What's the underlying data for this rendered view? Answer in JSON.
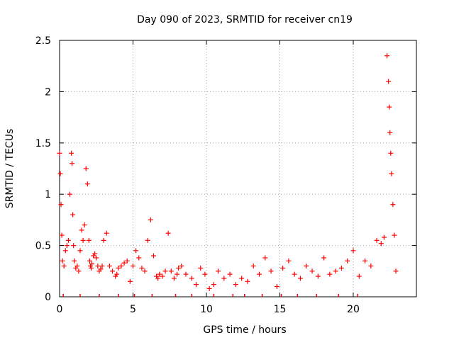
{
  "chart_data": {
    "type": "scatter",
    "title": "Day 090 of 2023, SRMTID for receiver cn19",
    "xlabel": "GPS time / hours",
    "ylabel": "SRMTID / TECUs",
    "xlim": [
      0,
      24.3
    ],
    "ylim": [
      0,
      2.5
    ],
    "xticks": [
      0,
      5,
      10,
      15,
      20
    ],
    "yticks": [
      0,
      0.5,
      1,
      1.5,
      2,
      2.5
    ],
    "xtick_labels": [
      "0",
      "5",
      "10",
      "15",
      "20"
    ],
    "ytick_labels": [
      "0",
      "0.5",
      "1",
      "1.5",
      "2",
      "2.5"
    ],
    "grid": true,
    "marker": "+",
    "color": "#ff0000",
    "series": [
      {
        "name": "SRMTID",
        "x": [
          0.0,
          0.05,
          0.1,
          0.15,
          0.2,
          0.3,
          0.4,
          0.5,
          0.6,
          0.7,
          0.8,
          0.85,
          0.9,
          0.95,
          1.0,
          1.1,
          1.2,
          1.3,
          1.4,
          1.5,
          1.6,
          1.7,
          1.8,
          1.9,
          2.0,
          2.05,
          2.1,
          2.15,
          2.2,
          2.3,
          2.4,
          2.5,
          2.6,
          2.7,
          2.8,
          2.9,
          3.0,
          3.2,
          3.4,
          3.6,
          3.8,
          3.9,
          4.0,
          4.2,
          4.4,
          4.6,
          4.8,
          5.0,
          5.2,
          5.4,
          5.6,
          5.8,
          6.0,
          6.2,
          6.4,
          6.6,
          6.7,
          6.8,
          7.0,
          7.2,
          7.4,
          7.6,
          7.8,
          8.0,
          8.1,
          8.3,
          8.6,
          9.0,
          9.3,
          9.6,
          9.9,
          10.2,
          10.5,
          10.8,
          11.2,
          11.6,
          12.0,
          12.4,
          12.8,
          13.2,
          13.6,
          14.0,
          14.4,
          14.8,
          15.2,
          15.6,
          16.0,
          16.4,
          16.8,
          17.2,
          17.6,
          18.0,
          18.4,
          18.8,
          19.2,
          19.6,
          20.0,
          20.4,
          20.8,
          21.2,
          21.6,
          21.9,
          22.1,
          22.3,
          22.4,
          22.45,
          22.5,
          22.55,
          22.6,
          22.7,
          22.8,
          22.9
        ],
        "y": [
          1.4,
          1.2,
          0.9,
          0.6,
          0.35,
          0.3,
          0.45,
          0.5,
          0.55,
          1.0,
          1.4,
          1.3,
          0.8,
          0.5,
          0.35,
          0.28,
          0.3,
          0.25,
          0.45,
          0.65,
          0.55,
          0.7,
          1.25,
          1.1,
          0.55,
          0.35,
          0.3,
          0.28,
          0.32,
          0.4,
          0.42,
          0.38,
          0.3,
          0.25,
          0.27,
          0.3,
          0.55,
          0.62,
          0.3,
          0.25,
          0.2,
          0.22,
          0.28,
          0.3,
          0.33,
          0.35,
          0.15,
          0.3,
          0.45,
          0.38,
          0.28,
          0.25,
          0.55,
          0.75,
          0.4,
          0.2,
          0.18,
          0.22,
          0.2,
          0.25,
          0.62,
          0.25,
          0.18,
          0.22,
          0.28,
          0.3,
          0.22,
          0.18,
          0.12,
          0.28,
          0.22,
          0.08,
          0.12,
          0.25,
          0.18,
          0.22,
          0.12,
          0.18,
          0.15,
          0.3,
          0.22,
          0.38,
          0.25,
          0.1,
          0.28,
          0.35,
          0.22,
          0.18,
          0.3,
          0.25,
          0.2,
          0.38,
          0.22,
          0.25,
          0.28,
          0.35,
          0.45,
          0.2,
          0.35,
          0.3,
          0.55,
          0.52,
          0.58,
          2.35,
          2.1,
          1.85,
          1.6,
          1.4,
          1.2,
          0.9,
          0.6,
          0.25
        ],
        "zeros_x": [
          0.25,
          1.4,
          2.7,
          4.0,
          5.1,
          6.3,
          7.9,
          9.0,
          10.5,
          11.8,
          12.6,
          13.8,
          15.1,
          16.2,
          17.5,
          19.0,
          20.3
        ]
      }
    ]
  }
}
